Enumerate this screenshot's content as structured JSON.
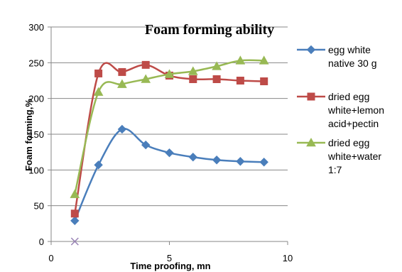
{
  "chart_data": {
    "type": "line",
    "title": "Foam forming ability",
    "xlabel": "Time proofing, mn",
    "ylabel": "Foam forming,%",
    "xlim": [
      0,
      10
    ],
    "ylim": [
      0,
      300
    ],
    "xticks": [
      0,
      5,
      10
    ],
    "yticks": [
      0,
      50,
      100,
      150,
      200,
      250,
      300
    ],
    "grid": "horizontal",
    "smooth": true,
    "legend": "right",
    "series": [
      {
        "name": "egg white native 30 g",
        "legend_lines": [
          "egg white",
          "native 30 g"
        ],
        "color": "#4a7ebb",
        "marker": "diamond",
        "x": [
          1,
          2,
          3,
          4,
          5,
          6,
          7,
          8,
          9
        ],
        "y": [
          29,
          107,
          157,
          135,
          124,
          118,
          114,
          112,
          111
        ]
      },
      {
        "name": "dried egg white+lemon acid+pectin",
        "legend_lines": [
          "dried egg",
          "white+lemon",
          "acid+pectin"
        ],
        "color": "#be4b48",
        "marker": "square",
        "x": [
          1,
          2,
          3,
          4,
          5,
          6,
          7,
          8,
          9
        ],
        "y": [
          39,
          235,
          237,
          247,
          232,
          227,
          227,
          225,
          224
        ]
      },
      {
        "name": "dried egg white+water 1:7",
        "legend_lines": [
          "dried egg",
          "white+water",
          "1:7"
        ],
        "color": "#98b954",
        "marker": "triangle",
        "x": [
          1,
          2,
          3,
          4,
          5,
          6,
          7,
          8,
          9
        ],
        "y": [
          66,
          209,
          220,
          227,
          234,
          238,
          245,
          253,
          253
        ]
      }
    ],
    "extra_points": [
      {
        "x": 1,
        "y": 0,
        "marker": "x",
        "color": "#9983b5"
      }
    ]
  }
}
